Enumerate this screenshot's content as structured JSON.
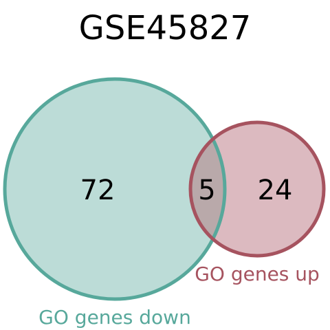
{
  "title": "GSE45827",
  "sets": [
    {
      "id": "left",
      "label": "GO genes down",
      "only_count": "72",
      "fill_color": "#bcdcd7",
      "stroke_color": "#57a89b",
      "label_color": "#57a89b"
    },
    {
      "id": "right",
      "label": "GO genes up",
      "only_count": "24",
      "fill_color": "#dcbac0",
      "stroke_color": "#a6535f",
      "label_color": "#a6535f"
    }
  ],
  "intersection": {
    "count": "5",
    "fill_color": "#b9a9aa"
  },
  "text_color": "#000000"
}
